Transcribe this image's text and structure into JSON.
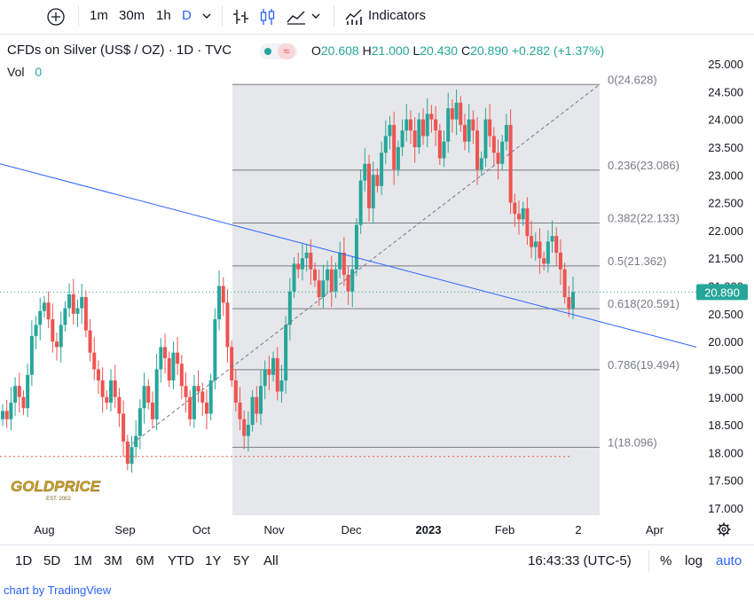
{
  "toolbar": {
    "add_label": "+",
    "intervals": [
      "1m",
      "30m",
      "1h",
      "D"
    ],
    "indicators_label": "Indicators"
  },
  "symbol": {
    "title": "CFDs on Silver (US$ / OZ) · 1D · TVC",
    "vol_label": "Vol",
    "vol_value": "0",
    "ohlc": {
      "o_label": "O",
      "o": "20.608",
      "h_label": "H",
      "h": "21.000",
      "l_label": "L",
      "l": "20.430",
      "c_label": "C",
      "c": "20.890",
      "change": "+0.282 (+1.37%)"
    },
    "live_label": "≈"
  },
  "colors": {
    "up": "#26a69a",
    "down": "#ef5350",
    "trendline": "#2962ff",
    "fib_zone": "#e6e7ea",
    "fib_line": "#787b86",
    "accent": "#2962ff"
  },
  "chart_data": {
    "type": "candlestick",
    "instrument": "CFDs on Silver (US$ / OZ)",
    "timeframe": "1D",
    "last_price": 20.89,
    "yaxis": {
      "ticks": [
        "25.000",
        "24.500",
        "24.000",
        "23.500",
        "23.000",
        "22.500",
        "22.000",
        "21.500",
        "21.000",
        "20.500",
        "20.000",
        "19.500",
        "19.000",
        "18.500",
        "18.000",
        "17.500",
        "17.000"
      ],
      "ylim": [
        16.8,
        25.35
      ]
    },
    "xaxis": {
      "ticks": [
        "Aug",
        "Sep",
        "Oct",
        "Nov",
        "Dec",
        "2023",
        "Feb",
        "2",
        "Apr"
      ]
    },
    "fibonacci": [
      {
        "ratio": "0",
        "label": "0(24.628)",
        "price": 24.628
      },
      {
        "ratio": "0.236",
        "label": "0.236(23.086)",
        "price": 23.086
      },
      {
        "ratio": "0.382",
        "label": "0.382(22.133)",
        "price": 22.133
      },
      {
        "ratio": "0.5",
        "label": "0.5(21.362)",
        "price": 21.362
      },
      {
        "ratio": "0.618",
        "label": "0.618(20.591)",
        "price": 20.591
      },
      {
        "ratio": "0.786",
        "label": "0.786(19.494)",
        "price": 19.494
      },
      {
        "ratio": "1",
        "label": "1(18.096)",
        "price": 18.096
      }
    ],
    "trendline": {
      "start_price": 23.2,
      "end_price": 19.9
    },
    "recent_low_marker": 17.93,
    "closes": [
      18.75,
      18.6,
      18.9,
      19.2,
      19.0,
      18.8,
      19.4,
      20.1,
      20.3,
      20.55,
      20.7,
      20.4,
      20.0,
      19.9,
      20.3,
      20.6,
      20.85,
      20.5,
      20.6,
      20.8,
      20.2,
      19.8,
      19.5,
      19.3,
      19.0,
      18.9,
      19.3,
      19.0,
      18.7,
      18.2,
      17.8,
      18.1,
      18.3,
      18.8,
      19.2,
      18.9,
      18.6,
      19.5,
      19.9,
      19.7,
      19.3,
      19.8,
      19.6,
      19.2,
      19.0,
      18.6,
      19.2,
      19.1,
      18.9,
      18.7,
      19.3,
      20.4,
      21.0,
      20.7,
      19.9,
      19.3,
      18.9,
      18.6,
      18.3,
      18.5,
      19.0,
      18.7,
      19.2,
      19.5,
      19.4,
      19.7,
      19.1,
      19.3,
      20.3,
      20.9,
      21.4,
      21.3,
      21.5,
      21.6,
      21.3,
      21.1,
      20.8,
      21.1,
      21.3,
      20.9,
      21.3,
      21.6,
      21.2,
      20.9,
      21.3,
      22.1,
      22.9,
      23.2,
      22.4,
      23.0,
      22.8,
      23.4,
      23.7,
      23.9,
      23.1,
      23.5,
      23.8,
      24.0,
      23.8,
      23.5,
      24.0,
      23.7,
      24.1,
      24.0,
      23.8,
      23.3,
      23.6,
      24.2,
      24.0,
      24.3,
      23.9,
      23.6,
      24.0,
      23.8,
      23.1,
      23.3,
      24.0,
      23.7,
      23.4,
      23.2,
      23.6,
      23.9,
      22.5,
      22.3,
      22.2,
      22.4,
      21.9,
      21.7,
      21.8,
      21.5,
      21.4,
      21.8,
      21.9,
      21.6,
      21.3,
      20.8,
      20.6,
      20.89
    ]
  },
  "bottombar": {
    "ranges": [
      "1D",
      "5D",
      "1M",
      "3M",
      "6M",
      "YTD",
      "1Y",
      "5Y",
      "All"
    ],
    "time": "16:43:33 (UTC-5)",
    "percent": "%",
    "log": "log",
    "auto": "auto"
  },
  "credit": "chart by TradingView",
  "watermark": "GOLDPRICE",
  "watermark_sub": "EST. 2002"
}
